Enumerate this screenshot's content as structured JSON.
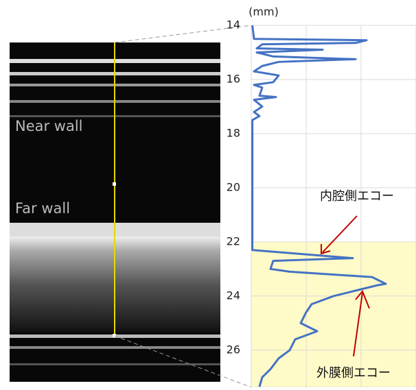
{
  "image_labels": {
    "near": "Near wall",
    "far": "Far wall"
  },
  "chart_data": {
    "type": "line",
    "y_label": "(mm)",
    "ylim": [
      14,
      27.37
    ],
    "yticks": [
      14,
      16,
      18,
      20,
      22,
      24,
      26
    ],
    "xlim": [
      0,
      3
    ],
    "xticks": [
      0,
      1,
      2,
      3
    ],
    "grid": true,
    "highlight_from": 22,
    "highlight_color": "#fffbc8",
    "series": [
      {
        "color": "#4472c4",
        "depth": [
          14.0,
          14.5,
          14.55,
          14.65,
          14.7,
          14.85,
          14.9,
          15.0,
          15.15,
          15.25,
          15.35,
          15.5,
          15.7,
          15.85,
          16.1,
          16.2,
          16.3,
          16.6,
          16.65,
          16.75,
          17.0,
          17.2,
          17.35,
          17.5,
          22.3,
          22.6,
          22.7,
          23.0,
          23.1,
          23.3,
          23.55,
          23.6,
          23.8,
          24.0,
          24.3,
          24.6,
          25.0,
          25.3,
          25.6,
          26.0,
          26.3,
          26.7,
          27.0,
          27.35
        ],
        "values": [
          0.02,
          0.05,
          2.1,
          1.9,
          0.2,
          0.1,
          1.3,
          0.1,
          0.4,
          1.9,
          0.5,
          0.2,
          0.05,
          0.5,
          0.4,
          0.05,
          0.2,
          0.15,
          0.45,
          0.05,
          0.2,
          0.05,
          0.15,
          0.02,
          0.02,
          1.85,
          0.4,
          0.35,
          0.7,
          2.2,
          2.45,
          2.3,
          1.9,
          1.5,
          1.1,
          1.0,
          0.9,
          1.2,
          0.8,
          0.7,
          0.5,
          0.35,
          0.2,
          0.15
        ]
      }
    ],
    "annotations": [
      "内腔側エコー",
      "外膜側エコー"
    ]
  }
}
